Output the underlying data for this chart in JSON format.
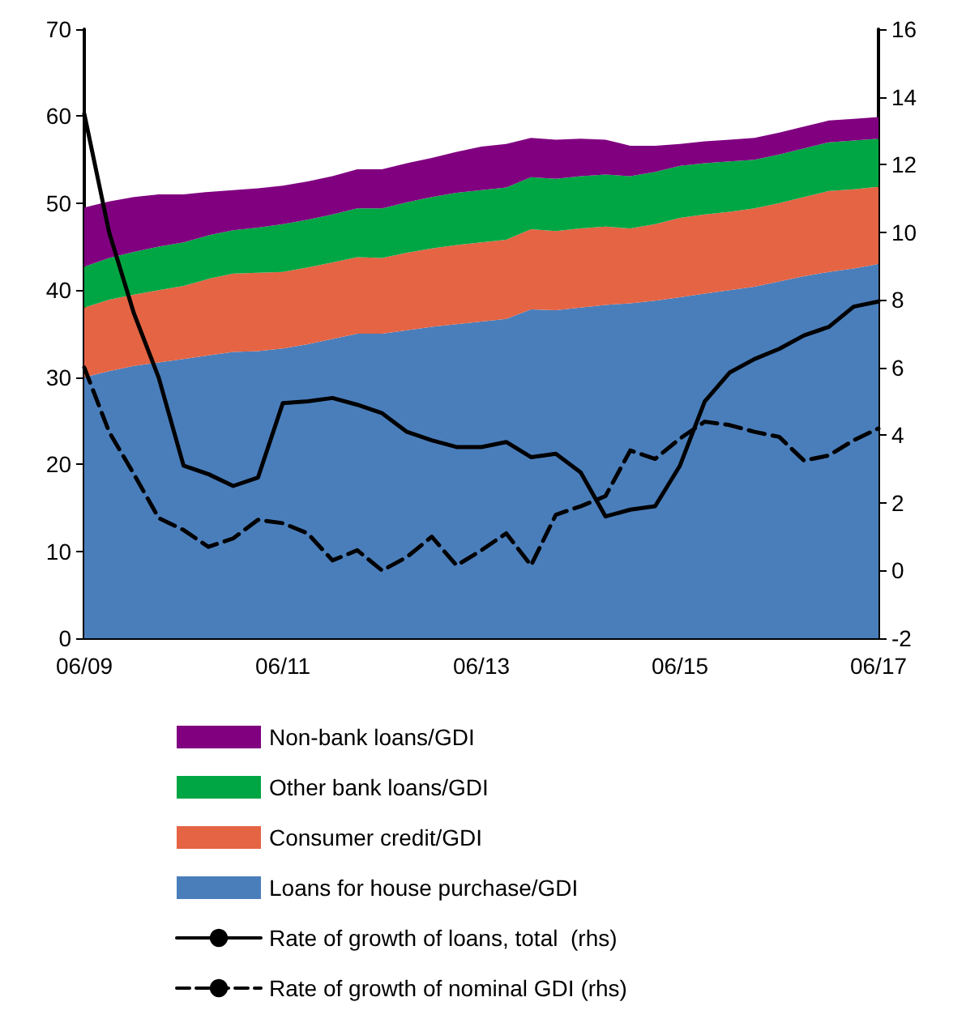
{
  "chart_data": {
    "type": "area",
    "stacked": true,
    "legend": "bottom",
    "grid": false,
    "categories": [
      "06/09",
      null,
      null,
      null,
      null,
      null,
      null,
      null,
      "06/11",
      null,
      null,
      null,
      null,
      null,
      null,
      null,
      "06/13",
      null,
      null,
      null,
      null,
      null,
      null,
      null,
      "06/15",
      null,
      null,
      null,
      null,
      null,
      null,
      null,
      "06/17"
    ],
    "ylim": [
      0,
      70
    ],
    "yticks": [
      0,
      10,
      20,
      30,
      40,
      50,
      60,
      70
    ],
    "y2lim": [
      -2,
      16
    ],
    "y2ticks": [
      -2,
      0,
      2,
      4,
      6,
      8,
      10,
      12,
      14,
      16
    ],
    "series": [
      {
        "name": "Loans for house purchase/GDI",
        "color": "#4a7ebb",
        "values": [
          30.0,
          30.7,
          31.3,
          31.7,
          32.1,
          32.5,
          32.9,
          33.0,
          33.3,
          33.8,
          34.4,
          35.0,
          35.0,
          35.4,
          35.8,
          36.1,
          36.4,
          36.7,
          37.8,
          37.7,
          38.0,
          38.3,
          38.5,
          38.8,
          39.2,
          39.6,
          40.0,
          40.4,
          41.0,
          41.6,
          42.1,
          42.5,
          43.0
        ]
      },
      {
        "name": "Consumer credit/GDI",
        "color": "#e46444",
        "values": [
          8.0,
          8.2,
          8.2,
          8.3,
          8.4,
          8.8,
          9.0,
          9.0,
          8.8,
          8.8,
          8.8,
          8.8,
          8.7,
          8.9,
          9.0,
          9.1,
          9.1,
          9.1,
          9.2,
          9.1,
          9.1,
          9.0,
          8.6,
          8.8,
          9.1,
          9.1,
          9.0,
          9.0,
          9.0,
          9.1,
          9.3,
          9.1,
          8.9
        ]
      },
      {
        "name": "Other bank loans/GDI",
        "color": "#00a643",
        "values": [
          4.7,
          4.8,
          4.9,
          5.0,
          5.0,
          5.0,
          5.0,
          5.2,
          5.5,
          5.5,
          5.5,
          5.6,
          5.7,
          5.8,
          5.9,
          6.0,
          6.0,
          6.0,
          6.0,
          6.0,
          6.0,
          6.0,
          6.0,
          6.0,
          6.0,
          5.9,
          5.8,
          5.6,
          5.6,
          5.6,
          5.6,
          5.6,
          5.5
        ]
      },
      {
        "name": "Non-bank loans/GDI",
        "color": "#800080",
        "values": [
          6.8,
          6.5,
          6.3,
          6.0,
          5.5,
          5.0,
          4.6,
          4.5,
          4.4,
          4.4,
          4.4,
          4.5,
          4.5,
          4.5,
          4.5,
          4.7,
          5.0,
          5.0,
          4.5,
          4.5,
          4.3,
          4.0,
          3.5,
          3.0,
          2.5,
          2.5,
          2.5,
          2.5,
          2.5,
          2.5,
          2.5,
          2.5,
          2.5
        ]
      },
      {
        "name": "Rate of growth of loans, total  (rhs)",
        "type": "line",
        "axis": "y2",
        "color": "#000000",
        "line_style": "solid",
        "values": [
          13.5,
          10.0,
          7.6,
          5.7,
          3.1,
          2.85,
          2.5,
          2.75,
          4.95,
          5.0,
          5.1,
          4.9,
          4.65,
          4.1,
          3.85,
          3.65,
          3.65,
          3.8,
          3.35,
          3.45,
          2.9,
          1.6,
          1.8,
          1.9,
          3.1,
          5.0,
          5.85,
          6.25,
          6.55,
          6.95,
          7.2,
          7.8,
          7.95
        ]
      },
      {
        "name": "Rate of growth of nominal GDI (rhs)",
        "type": "line",
        "axis": "y2",
        "color": "#000000",
        "line_style": "dashed",
        "values": [
          6.0,
          4.1,
          2.85,
          1.55,
          1.2,
          0.7,
          0.95,
          1.5,
          1.4,
          1.1,
          0.3,
          0.6,
          0.0,
          0.4,
          1.0,
          0.15,
          0.6,
          1.1,
          0.15,
          1.65,
          1.9,
          2.2,
          3.55,
          3.3,
          3.9,
          4.4,
          4.3,
          4.1,
          3.95,
          3.25,
          3.4,
          3.85,
          4.2
        ]
      }
    ]
  }
}
